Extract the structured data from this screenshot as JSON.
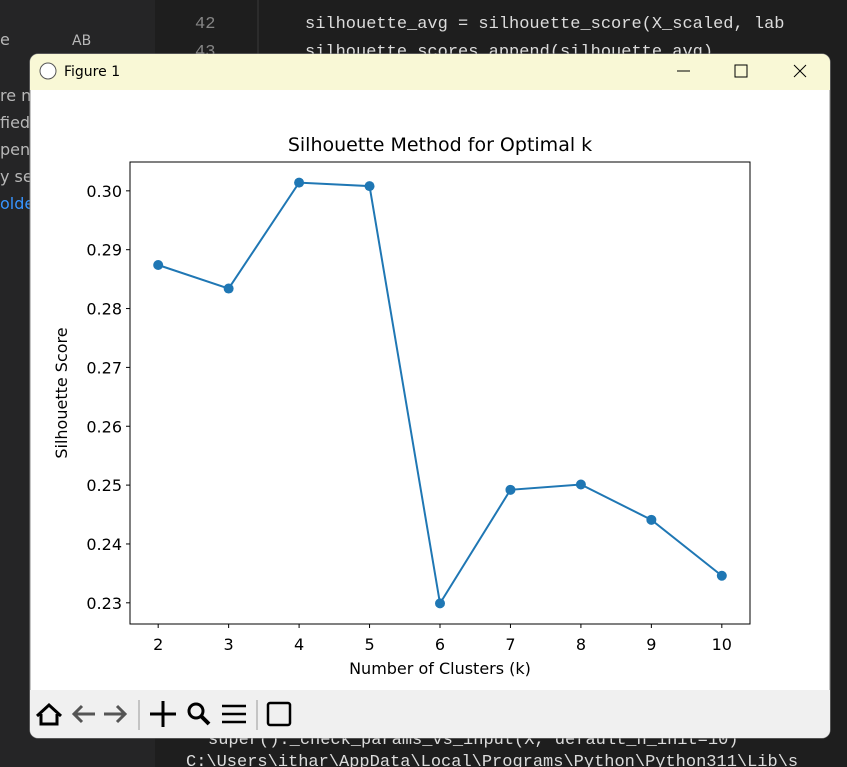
{
  "window": {
    "title": "Figure 1"
  },
  "editor": {
    "lines": [
      {
        "number": "42",
        "code": "silhouette_avg = silhouette_score(X_scaled, lab"
      },
      {
        "number": "43",
        "code": "silhouette_scores.append(silhouette_avg)"
      }
    ],
    "terminal": [
      "super()._check_params_vs_input(X, default_n_init=10)",
      "C:\\Users\\ithar\\AppData\\Local\\Programs\\Python\\Python311\\Lib\\s"
    ],
    "sidebar": [
      "e",
      "AB",
      "re n",
      "fied",
      "pen",
      "y se",
      "olde"
    ]
  },
  "chart_data": {
    "type": "line",
    "title": "Silhouette Method for Optimal k",
    "x_label": "Number of Clusters (k)",
    "y_label": "Silhouette Score",
    "x": [
      2,
      3,
      4,
      5,
      6,
      7,
      8,
      9,
      10
    ],
    "values": [
      0.2874,
      0.2834,
      0.3014,
      0.3008,
      0.2299,
      0.2492,
      0.2501,
      0.2441,
      0.2346
    ],
    "color": "#1f77b4",
    "markers": true,
    "grid": false,
    "xlim": [
      1.6,
      10.4
    ],
    "xticks": [
      2,
      3,
      4,
      5,
      6,
      7,
      8,
      9,
      10
    ],
    "ylim": [
      0.2264,
      0.3049
    ],
    "yticks": [
      {
        "value": 0.23,
        "label": "0.23"
      },
      {
        "value": 0.24,
        "label": "0.24"
      },
      {
        "value": 0.25,
        "label": "0.25"
      },
      {
        "value": 0.26,
        "label": "0.26"
      },
      {
        "value": 0.27,
        "label": "0.27"
      },
      {
        "value": 0.28,
        "label": "0.28"
      },
      {
        "value": 0.29,
        "label": "0.29"
      },
      {
        "value": 0.3,
        "label": "0.30"
      }
    ]
  }
}
